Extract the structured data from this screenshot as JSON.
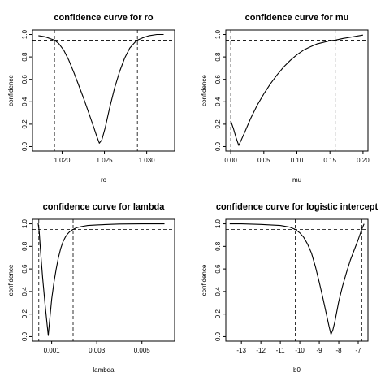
{
  "chart_data": [
    {
      "type": "line",
      "title": "confidence curve for ro",
      "xlabel": "ro",
      "ylabel": "confidence",
      "xlim": [
        1.0165,
        1.0333
      ],
      "ylim": [
        -0.04,
        1.04
      ],
      "x_ticks": [
        1.02,
        1.025,
        1.03
      ],
      "x_tick_labels": [
        "1.020",
        "1.025",
        "1.030"
      ],
      "y_ticks": [
        0.0,
        0.2,
        0.4,
        0.6,
        0.8,
        1.0
      ],
      "y_tick_labels": [
        "0.0",
        "0.2",
        "0.4",
        "0.6",
        "0.8",
        "1.0"
      ],
      "grid": false,
      "hline": 0.95,
      "vlines": [
        1.0191,
        1.0289
      ],
      "series": [
        {
          "x": [
            1.0172,
            1.018,
            1.0187,
            1.0191,
            1.0196,
            1.0202,
            1.0208,
            1.0214,
            1.022,
            1.0226,
            1.0232,
            1.0238,
            1.0241,
            1.0244,
            1.0247,
            1.0251,
            1.0256,
            1.0262,
            1.0268,
            1.0274,
            1.028,
            1.0286,
            1.0289,
            1.0295,
            1.0303,
            1.0312,
            1.032
          ],
          "y": [
            0.99,
            0.98,
            0.96,
            0.95,
            0.92,
            0.86,
            0.77,
            0.66,
            0.54,
            0.42,
            0.29,
            0.16,
            0.09,
            0.03,
            0.06,
            0.17,
            0.34,
            0.52,
            0.67,
            0.79,
            0.88,
            0.93,
            0.95,
            0.97,
            0.99,
            1.0,
            1.0
          ]
        }
      ]
    },
    {
      "type": "line",
      "title": "confidence curve for mu",
      "xlabel": "mu",
      "ylabel": "confidence",
      "xlim": [
        -0.0075,
        0.2075
      ],
      "ylim": [
        -0.04,
        1.04
      ],
      "x_ticks": [
        0.0,
        0.05,
        0.1,
        0.15,
        0.2
      ],
      "x_tick_labels": [
        "0.00",
        "0.05",
        "0.10",
        "0.15",
        "0.20"
      ],
      "y_ticks": [
        0.0,
        0.2,
        0.4,
        0.6,
        0.8,
        1.0
      ],
      "y_tick_labels": [
        "0.0",
        "0.2",
        "0.4",
        "0.6",
        "0.8",
        "1.0"
      ],
      "grid": false,
      "hline": 0.95,
      "vlines": [
        0.0,
        0.158
      ],
      "series": [
        {
          "x": [
            0.0,
            0.004,
            0.008,
            0.012,
            0.016,
            0.022,
            0.03,
            0.04,
            0.05,
            0.06,
            0.07,
            0.08,
            0.09,
            0.1,
            0.11,
            0.12,
            0.13,
            0.14,
            0.15,
            0.158,
            0.17,
            0.18,
            0.19,
            0.2
          ],
          "y": [
            0.23,
            0.16,
            0.08,
            0.01,
            0.06,
            0.14,
            0.25,
            0.37,
            0.47,
            0.56,
            0.64,
            0.71,
            0.77,
            0.82,
            0.86,
            0.89,
            0.915,
            0.93,
            0.945,
            0.95,
            0.965,
            0.975,
            0.985,
            0.995
          ]
        }
      ]
    },
    {
      "type": "line",
      "title": "confidence curve for lambda",
      "xlabel": "lambda",
      "ylabel": "confidence",
      "xlim": [
        0.00015,
        0.00645
      ],
      "ylim": [
        -0.04,
        1.04
      ],
      "x_ticks": [
        0.001,
        0.003,
        0.005
      ],
      "x_tick_labels": [
        "0.001",
        "0.003",
        "0.005"
      ],
      "y_ticks": [
        0.0,
        0.2,
        0.4,
        0.6,
        0.8,
        1.0
      ],
      "y_tick_labels": [
        "0.0",
        "0.2",
        "0.4",
        "0.6",
        "0.8",
        "1.0"
      ],
      "grid": false,
      "hline": 0.95,
      "vlines": [
        0.00043,
        0.00195
      ],
      "series": [
        {
          "x": [
            0.0004,
            0.00045,
            0.0005,
            0.0006,
            0.0007,
            0.0008,
            0.00085,
            0.0009,
            0.001,
            0.0011,
            0.0012,
            0.0013,
            0.0014,
            0.0015,
            0.0016,
            0.0017,
            0.0018,
            0.0019,
            0.00195,
            0.0021,
            0.0023,
            0.0026,
            0.003,
            0.0035,
            0.004,
            0.005,
            0.006
          ],
          "y": [
            1.01,
            0.93,
            0.78,
            0.52,
            0.3,
            0.1,
            0.01,
            0.12,
            0.33,
            0.48,
            0.6,
            0.7,
            0.78,
            0.84,
            0.88,
            0.91,
            0.93,
            0.945,
            0.95,
            0.965,
            0.975,
            0.985,
            0.99,
            0.995,
            0.998,
            1.0,
            1.0
          ]
        }
      ]
    },
    {
      "type": "line",
      "title": "confidence curve for logistic intercept",
      "xlabel": "b0",
      "ylabel": "confidence",
      "xlim": [
        -13.8,
        -6.5
      ],
      "ylim": [
        -0.04,
        1.04
      ],
      "x_ticks": [
        -13,
        -12,
        -11,
        -10,
        -9,
        -8,
        -7
      ],
      "x_tick_labels": [
        "-13",
        "-12",
        "-11",
        "-10",
        "-9",
        "-8",
        "-7"
      ],
      "y_ticks": [
        0.0,
        0.2,
        0.4,
        0.6,
        0.8,
        1.0
      ],
      "y_tick_labels": [
        "0.0",
        "0.2",
        "0.4",
        "0.6",
        "0.8",
        "1.0"
      ],
      "grid": false,
      "hline": 0.95,
      "vlines": [
        -10.23,
        -6.82
      ],
      "series": [
        {
          "x": [
            -13.6,
            -13.0,
            -12.0,
            -11.0,
            -10.5,
            -10.23,
            -10.0,
            -9.8,
            -9.6,
            -9.4,
            -9.2,
            -9.0,
            -8.8,
            -8.6,
            -8.5,
            -8.4,
            -8.3,
            -8.2,
            -8.1,
            -8.0,
            -7.8,
            -7.6,
            -7.4,
            -7.2,
            -7.0,
            -6.82,
            -6.7
          ],
          "y": [
            1.0,
            1.0,
            0.995,
            0.985,
            0.97,
            0.95,
            0.92,
            0.88,
            0.82,
            0.74,
            0.62,
            0.48,
            0.33,
            0.17,
            0.09,
            0.02,
            0.06,
            0.13,
            0.22,
            0.31,
            0.45,
            0.57,
            0.68,
            0.77,
            0.86,
            0.95,
            1.0
          ]
        }
      ]
    }
  ]
}
